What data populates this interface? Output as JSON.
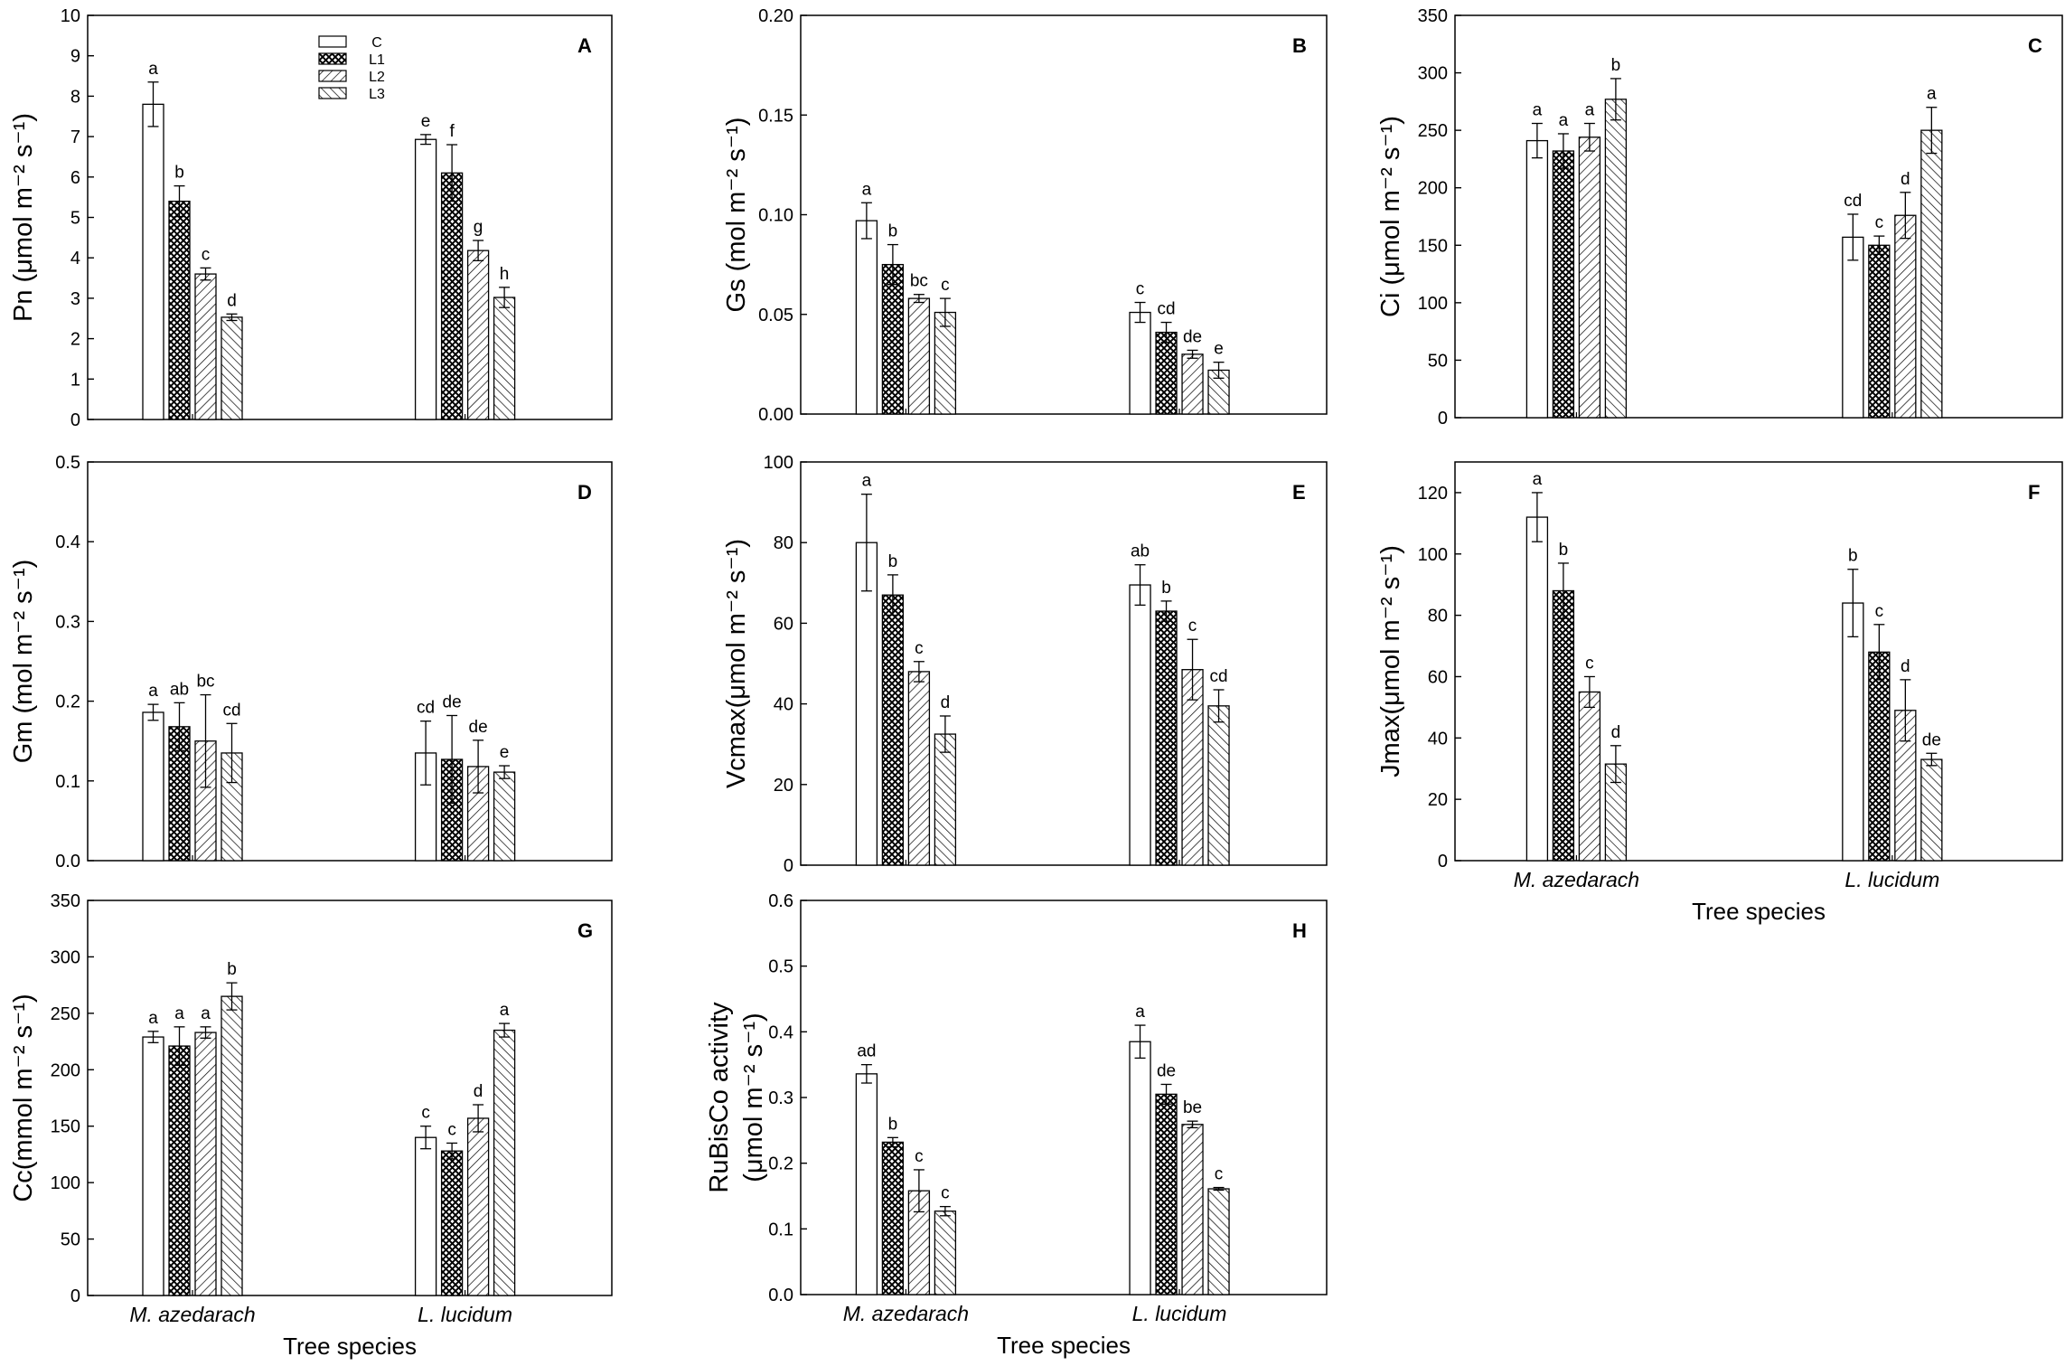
{
  "legend": {
    "entries": [
      {
        "label": "C",
        "pattern": "none"
      },
      {
        "label": "L1",
        "pattern": "cross"
      },
      {
        "label": "L2",
        "pattern": "fwd"
      },
      {
        "label": "L3",
        "pattern": "back"
      }
    ]
  },
  "chart_data": [
    {
      "type": "bar",
      "panel": "A",
      "ylabel": "Pn (μmol m⁻² s⁻¹)",
      "ylim": [
        0,
        10
      ],
      "yticks": [
        "0",
        "1",
        "2",
        "3",
        "4",
        "5",
        "6",
        "7",
        "8",
        "9",
        "10"
      ],
      "categories": [
        "M. azedarach",
        "L. lucidum"
      ],
      "show_xlabels": false,
      "xlabel": "",
      "series": [
        {
          "name": "C",
          "values": [
            7.8,
            6.93
          ],
          "errors": [
            0.55,
            0.12
          ],
          "letters": [
            "a",
            "e"
          ]
        },
        {
          "name": "L1",
          "values": [
            5.4,
            6.1
          ],
          "errors": [
            0.38,
            0.7
          ],
          "letters": [
            "b",
            "f"
          ]
        },
        {
          "name": "L2",
          "values": [
            3.6,
            4.18
          ],
          "errors": [
            0.15,
            0.25
          ],
          "letters": [
            "c",
            "g"
          ]
        },
        {
          "name": "L3",
          "values": [
            2.53,
            3.02
          ],
          "errors": [
            0.08,
            0.25
          ],
          "letters": [
            "d",
            "h"
          ]
        }
      ]
    },
    {
      "type": "bar",
      "panel": "B",
      "ylabel": "Gs (mol m⁻² s⁻¹)",
      "ylim": [
        0,
        0.2
      ],
      "yticks": [
        "0.00",
        "0.05",
        "0.10",
        "0.15",
        "0.20"
      ],
      "categories": [
        "M. azedarach",
        "L. lucidum"
      ],
      "show_xlabels": false,
      "xlabel": "",
      "series": [
        {
          "name": "C",
          "values": [
            0.097,
            0.051
          ],
          "errors": [
            0.009,
            0.005
          ],
          "letters": [
            "a",
            "c"
          ]
        },
        {
          "name": "L1",
          "values": [
            0.075,
            0.041
          ],
          "errors": [
            0.01,
            0.005
          ],
          "letters": [
            "b",
            "cd"
          ]
        },
        {
          "name": "L2",
          "values": [
            0.058,
            0.03
          ],
          "errors": [
            0.002,
            0.002
          ],
          "letters": [
            "bc",
            "de"
          ]
        },
        {
          "name": "L3",
          "values": [
            0.051,
            0.022
          ],
          "errors": [
            0.007,
            0.004
          ],
          "letters": [
            "c",
            "e"
          ]
        }
      ]
    },
    {
      "type": "bar",
      "panel": "C",
      "ylabel": "Ci (μmol m⁻² s⁻¹)",
      "ylim": [
        0,
        350
      ],
      "yticks": [
        "0",
        "50",
        "100",
        "150",
        "200",
        "250",
        "300",
        "350"
      ],
      "categories": [
        "M. azedarach",
        "L. lucidum"
      ],
      "show_xlabels": false,
      "xlabel": "",
      "series": [
        {
          "name": "C",
          "values": [
            241,
            157
          ],
          "errors": [
            15,
            20
          ],
          "letters": [
            "a",
            "cd"
          ]
        },
        {
          "name": "L1",
          "values": [
            232,
            150
          ],
          "errors": [
            15,
            8
          ],
          "letters": [
            "a",
            "c"
          ]
        },
        {
          "name": "L2",
          "values": [
            244,
            176
          ],
          "errors": [
            12,
            20
          ],
          "letters": [
            "a",
            "d"
          ]
        },
        {
          "name": "L3",
          "values": [
            277,
            250
          ],
          "errors": [
            18,
            20
          ],
          "letters": [
            "b",
            "a"
          ]
        }
      ]
    },
    {
      "type": "bar",
      "panel": "D",
      "ylabel": "Gm (mol m⁻² s⁻¹)",
      "ylim": [
        0,
        0.5
      ],
      "yticks": [
        "0.0",
        "0.1",
        "0.2",
        "0.3",
        "0.4",
        "0.5"
      ],
      "categories": [
        "M. azedarach",
        "L. lucidum"
      ],
      "show_xlabels": false,
      "xlabel": "",
      "series": [
        {
          "name": "C",
          "values": [
            0.186,
            0.135
          ],
          "errors": [
            0.01,
            0.04
          ],
          "letters": [
            "a",
            "cd"
          ]
        },
        {
          "name": "L1",
          "values": [
            0.168,
            0.127
          ],
          "errors": [
            0.03,
            0.055
          ],
          "letters": [
            "ab",
            "de"
          ]
        },
        {
          "name": "L2",
          "values": [
            0.15,
            0.118
          ],
          "errors": [
            0.058,
            0.033
          ],
          "letters": [
            "bc",
            "de"
          ]
        },
        {
          "name": "L3",
          "values": [
            0.135,
            0.111
          ],
          "errors": [
            0.037,
            0.008
          ],
          "letters": [
            "cd",
            "e"
          ]
        }
      ]
    },
    {
      "type": "bar",
      "panel": "E",
      "ylabel": "Vcmax(μmol m⁻² s⁻¹)",
      "ylim": [
        0,
        100
      ],
      "yticks": [
        "0",
        "20",
        "40",
        "60",
        "80",
        "100"
      ],
      "categories": [
        "M. azedarach",
        "L. lucidum"
      ],
      "show_xlabels": false,
      "xlabel": "",
      "series": [
        {
          "name": "C",
          "values": [
            80,
            69.5
          ],
          "errors": [
            12,
            5
          ],
          "letters": [
            "a",
            "ab"
          ]
        },
        {
          "name": "L1",
          "values": [
            67,
            63
          ],
          "errors": [
            5,
            2.5
          ],
          "letters": [
            "b",
            "b"
          ]
        },
        {
          "name": "L2",
          "values": [
            48,
            48.5
          ],
          "errors": [
            2.5,
            7.5
          ],
          "letters": [
            "c",
            "c"
          ]
        },
        {
          "name": "L3",
          "values": [
            32.5,
            39.5
          ],
          "errors": [
            4.5,
            4
          ],
          "letters": [
            "d",
            "cd"
          ]
        }
      ]
    },
    {
      "type": "bar",
      "panel": "F",
      "ylabel": "Jmax(μmol m⁻² s⁻¹)",
      "ylim": [
        0,
        130
      ],
      "yticks": [
        "0",
        "20",
        "40",
        "60",
        "80",
        "100",
        "120"
      ],
      "categories": [
        "M. azedarach",
        "L. lucidum"
      ],
      "show_xlabels": true,
      "xlabel": "Tree species",
      "series": [
        {
          "name": "C",
          "values": [
            112,
            84
          ],
          "errors": [
            8,
            11
          ],
          "letters": [
            "a",
            "b"
          ]
        },
        {
          "name": "L1",
          "values": [
            88,
            68
          ],
          "errors": [
            9,
            9
          ],
          "letters": [
            "b",
            "c"
          ]
        },
        {
          "name": "L2",
          "values": [
            55,
            49
          ],
          "errors": [
            5,
            10
          ],
          "letters": [
            "c",
            "d"
          ]
        },
        {
          "name": "L3",
          "values": [
            31.5,
            33
          ],
          "errors": [
            6,
            2
          ],
          "letters": [
            "d",
            "de"
          ]
        }
      ]
    },
    {
      "type": "bar",
      "panel": "G",
      "ylabel": "Cc(mmol m⁻² s⁻¹)",
      "ylim": [
        0,
        350
      ],
      "yticks": [
        "0",
        "50",
        "100",
        "150",
        "200",
        "250",
        "300",
        "350"
      ],
      "categories": [
        "M. azedarach",
        "L. lucidum"
      ],
      "show_xlabels": true,
      "xlabel": "Tree species",
      "series": [
        {
          "name": "C",
          "values": [
            229,
            140
          ],
          "errors": [
            5,
            10
          ],
          "letters": [
            "a",
            "c"
          ]
        },
        {
          "name": "L1",
          "values": [
            221,
            128
          ],
          "errors": [
            17,
            7
          ],
          "letters": [
            "a",
            "c"
          ]
        },
        {
          "name": "L2",
          "values": [
            233,
            157
          ],
          "errors": [
            5,
            12
          ],
          "letters": [
            "a",
            "d"
          ]
        },
        {
          "name": "L3",
          "values": [
            265,
            235
          ],
          "errors": [
            12,
            6
          ],
          "letters": [
            "b",
            "a"
          ]
        }
      ]
    },
    {
      "type": "bar",
      "panel": "H",
      "ylabel": "RuBisCo activity (μmol m⁻² s⁻¹)",
      "ylim": [
        0,
        0.6
      ],
      "ylabel_lines": [
        "RuBisCo activity",
        "(μmol m⁻² s⁻¹)"
      ],
      "yticks": [
        "0.0",
        "0.1",
        "0.2",
        "0.3",
        "0.4",
        "0.5",
        "0.6"
      ],
      "categories": [
        "M. azedarach",
        "L. lucidum"
      ],
      "show_xlabels": true,
      "xlabel": "Tree species",
      "series": [
        {
          "name": "C",
          "values": [
            0.336,
            0.385
          ],
          "errors": [
            0.014,
            0.025
          ],
          "letters": [
            "ad",
            "a"
          ]
        },
        {
          "name": "L1",
          "values": [
            0.232,
            0.305
          ],
          "errors": [
            0.007,
            0.015
          ],
          "letters": [
            "b",
            "de"
          ]
        },
        {
          "name": "L2",
          "values": [
            0.158,
            0.259
          ],
          "errors": [
            0.032,
            0.005
          ],
          "letters": [
            "c",
            "be"
          ]
        },
        {
          "name": "L3",
          "values": [
            0.127,
            0.161
          ],
          "errors": [
            0.007,
            0.002
          ],
          "letters": [
            "c",
            "c"
          ]
        }
      ]
    }
  ]
}
